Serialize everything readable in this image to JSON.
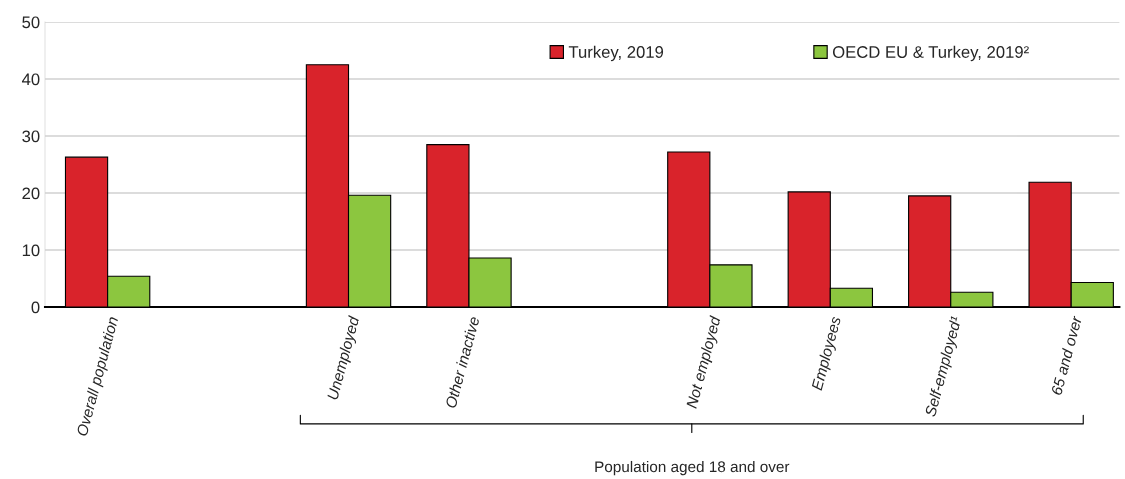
{
  "chart_data": {
    "type": "bar",
    "categories": [
      "Overall population",
      null,
      "Unemployed",
      "Other inactive",
      null,
      "Not employed",
      "Employees",
      "Self-employed¹",
      "65 and over"
    ],
    "series": [
      {
        "name": "Turkey, 2019",
        "color": "#d9232b",
        "values": [
          26.3,
          null,
          42.5,
          28.5,
          null,
          27.2,
          20.2,
          19.5,
          21.9
        ]
      },
      {
        "name": "OECD EU & Turkey, 2019²",
        "color": "#8cc63f",
        "values": [
          5.4,
          null,
          19.6,
          8.6,
          null,
          7.4,
          3.3,
          2.6,
          4.3
        ]
      }
    ],
    "ylim": [
      0,
      50
    ],
    "yticks": [
      0,
      10,
      20,
      30,
      40,
      50
    ],
    "grid": "y",
    "legend": "top right",
    "annotations": [
      "Population aged 18 and over"
    ]
  }
}
